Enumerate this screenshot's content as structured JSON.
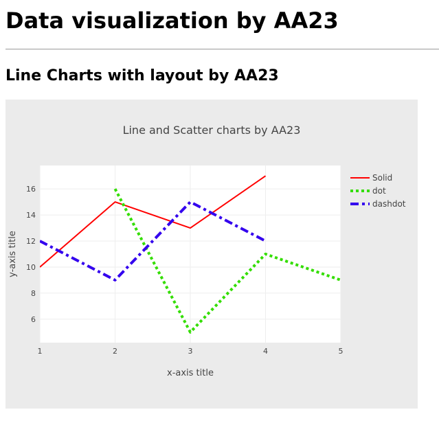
{
  "page": {
    "heading": "Data visualization by AA23",
    "subheading": "Line Charts with layout by AA23"
  },
  "chart_data": {
    "type": "line",
    "title": "Line and Scatter charts by AA23",
    "xlabel": "x-axis title",
    "ylabel": "y-axis title",
    "xlim": [
      1,
      5
    ],
    "ylim": [
      4.2,
      17.8
    ],
    "xticks": [
      1,
      2,
      3,
      4,
      5
    ],
    "yticks": [
      6,
      8,
      10,
      12,
      14,
      16
    ],
    "grid": true,
    "legend_position": "top-right",
    "series": [
      {
        "name": "Solid",
        "dash": "solid",
        "color": "#ff0000",
        "x": [
          1,
          2,
          3,
          4
        ],
        "y": [
          10,
          15,
          13,
          17
        ]
      },
      {
        "name": "dot",
        "dash": "dot",
        "color": "#33dd00",
        "x": [
          2,
          3,
          4,
          5
        ],
        "y": [
          16,
          5,
          11,
          9
        ]
      },
      {
        "name": "dashdot",
        "dash": "dashdot",
        "color": "#3300ee",
        "x": [
          1,
          2,
          3,
          4
        ],
        "y": [
          12,
          9,
          15,
          12
        ]
      }
    ]
  }
}
